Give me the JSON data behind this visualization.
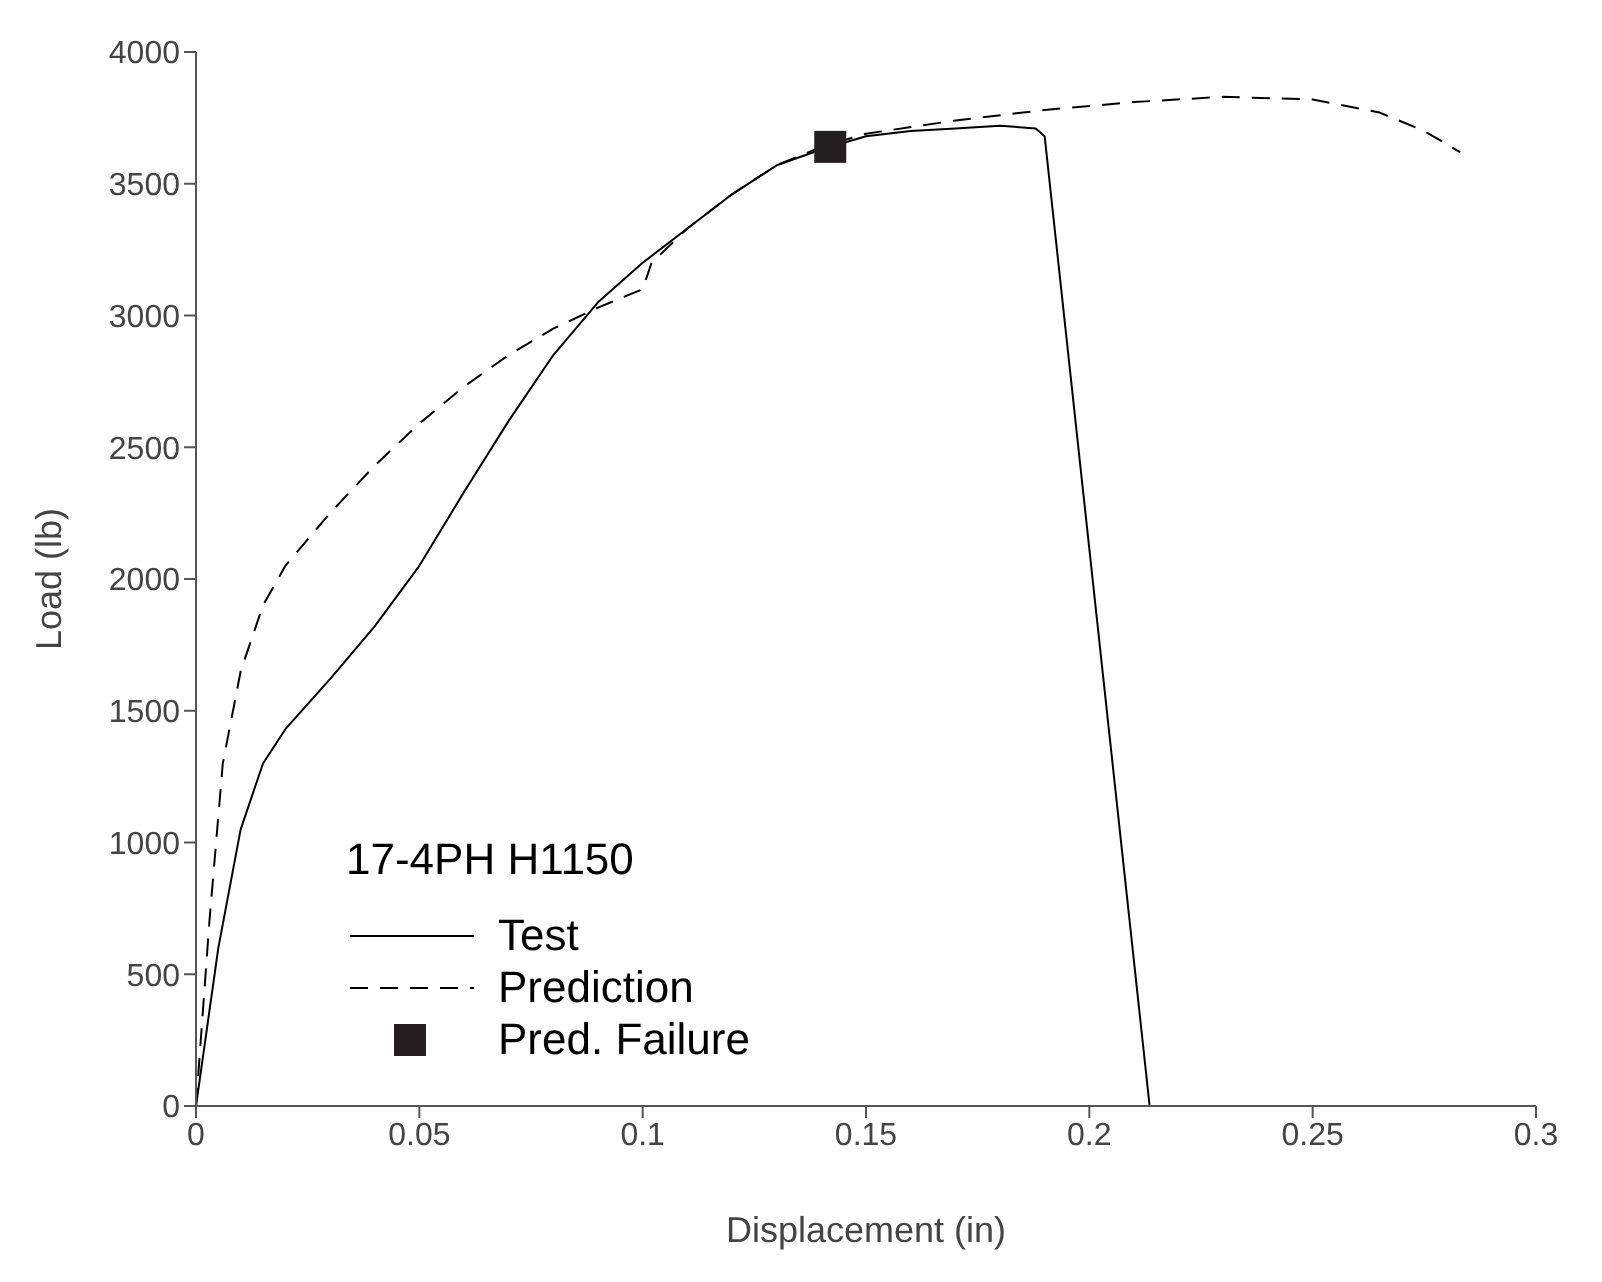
{
  "chart_data": {
    "type": "line",
    "xlabel": "Displacement (in)",
    "ylabel": "Load (lb)",
    "legend_title": "17-4PH H1150",
    "xlim": [
      0,
      0.3
    ],
    "xticks": [
      0,
      0.05,
      0.1,
      0.15,
      0.2,
      0.25,
      0.3
    ],
    "ylim": [
      0,
      4000
    ],
    "yticks": [
      0,
      500,
      1000,
      1500,
      2000,
      2500,
      3000,
      3500,
      4000
    ],
    "grid": false,
    "legend": "bottom left",
    "series": [
      {
        "name": "Test",
        "color": "#000000",
        "line_style": "solid",
        "marker": "none",
        "x": [
          0,
          0.005,
          0.01,
          0.015,
          0.02,
          0.03,
          0.04,
          0.05,
          0.06,
          0.07,
          0.08,
          0.09,
          0.1,
          0.11,
          0.12,
          0.13,
          0.14,
          0.15,
          0.16,
          0.17,
          0.18,
          0.188,
          0.19,
          0.2135
        ],
        "values": [
          0,
          600,
          1050,
          1300,
          1430,
          1620,
          1820,
          2050,
          2330,
          2600,
          2850,
          3050,
          3200,
          3330,
          3460,
          3570,
          3630,
          3680,
          3700,
          3710,
          3720,
          3710,
          3680,
          0
        ]
      },
      {
        "name": "Prediction",
        "color": "#000000",
        "line_style": "dashed",
        "marker": "none",
        "x": [
          0,
          0.003,
          0.006,
          0.01,
          0.015,
          0.02,
          0.03,
          0.04,
          0.05,
          0.06,
          0.07,
          0.08,
          0.09,
          0.1,
          0.102,
          0.11,
          0.12,
          0.13,
          0.14,
          0.15,
          0.17,
          0.19,
          0.21,
          0.23,
          0.25,
          0.265,
          0.275,
          0.283
        ],
        "values": [
          0,
          700,
          1300,
          1650,
          1900,
          2050,
          2250,
          2430,
          2590,
          2730,
          2850,
          2950,
          3030,
          3100,
          3200,
          3330,
          3460,
          3570,
          3640,
          3690,
          3740,
          3780,
          3810,
          3830,
          3820,
          3770,
          3700,
          3620
        ]
      },
      {
        "name": "Pred. Failure",
        "type": "scatter",
        "color": "#231f20",
        "marker": "square",
        "x": [
          0.142
        ],
        "values": [
          3640
        ]
      }
    ]
  }
}
